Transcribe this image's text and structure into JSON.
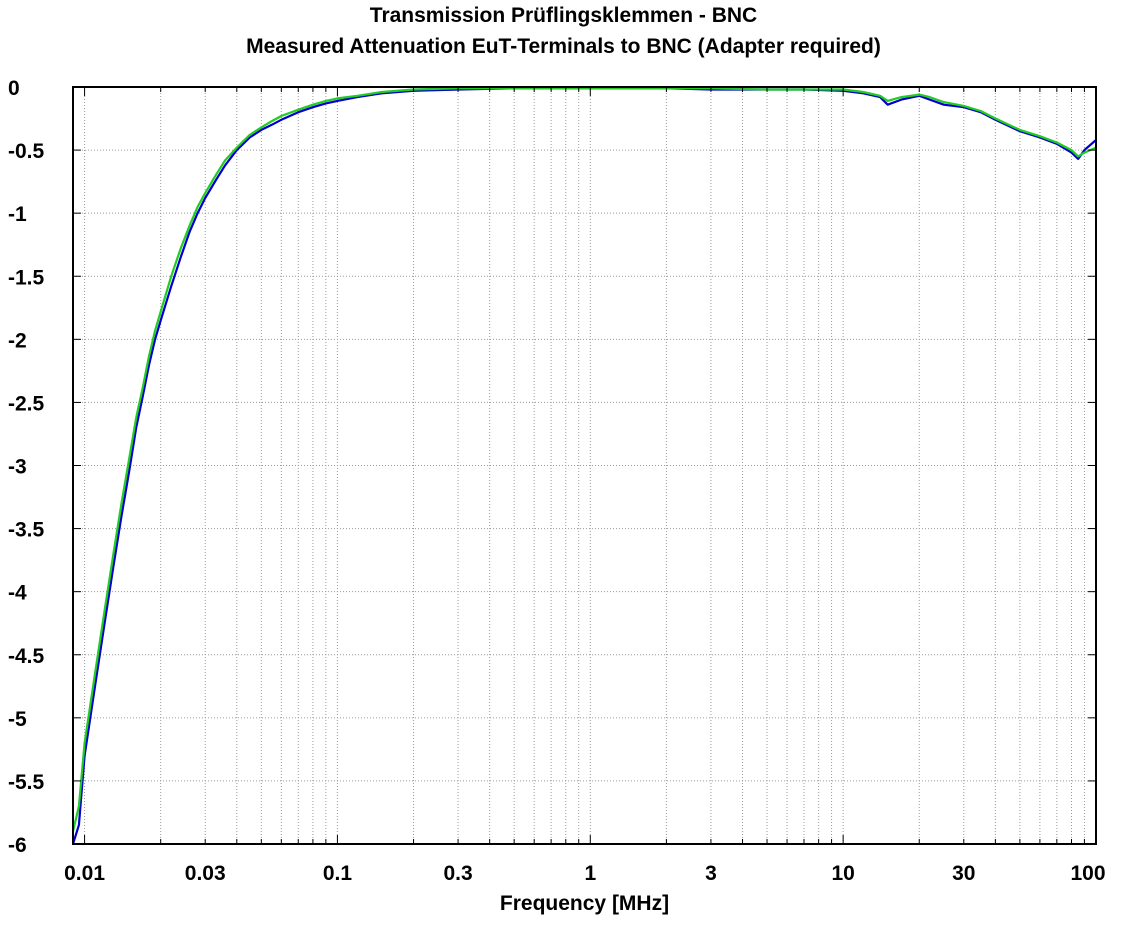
{
  "chart_data": {
    "type": "line",
    "title": "Transmission Prüflingsklemmen - BNC",
    "subtitle": "Measured Attenuation EuT-Terminals to BNC (Adapter required)",
    "xlabel": "Frequency [MHz]",
    "ylabel": "",
    "x_scale": "log",
    "xlim": [
      0.009,
      100
    ],
    "ylim": [
      -6,
      0
    ],
    "grid": true,
    "legend": "none",
    "x_ticks": [
      {
        "value": 0.01,
        "label": "0.01"
      },
      {
        "value": 0.03,
        "label": "0.03"
      },
      {
        "value": 0.1,
        "label": "0.1"
      },
      {
        "value": 0.3,
        "label": "0.3"
      },
      {
        "value": 1,
        "label": "1"
      },
      {
        "value": 3,
        "label": "3"
      },
      {
        "value": 10,
        "label": "10"
      },
      {
        "value": 30,
        "label": "30"
      },
      {
        "value": 100,
        "label": "100"
      }
    ],
    "y_ticks": [
      {
        "value": 0,
        "label": "0"
      },
      {
        "value": -0.5,
        "label": "-0.5"
      },
      {
        "value": -1,
        "label": "-1"
      },
      {
        "value": -1.5,
        "label": "-1.5"
      },
      {
        "value": -2,
        "label": "-2"
      },
      {
        "value": -2.5,
        "label": "-2.5"
      },
      {
        "value": -3,
        "label": "-3"
      },
      {
        "value": -3.5,
        "label": "-3.5"
      },
      {
        "value": -4,
        "label": "-4"
      },
      {
        "value": -4.5,
        "label": "-4.5"
      },
      {
        "value": -5,
        "label": "-5"
      },
      {
        "value": -5.5,
        "label": "-5.5"
      },
      {
        "value": -6,
        "label": "-6"
      }
    ],
    "series": [
      {
        "color": "#0000cc",
        "x": [
          0.009,
          0.0095,
          0.01,
          0.011,
          0.012,
          0.013,
          0.014,
          0.015,
          0.016,
          0.017,
          0.018,
          0.019,
          0.02,
          0.022,
          0.024,
          0.026,
          0.028,
          0.03,
          0.033,
          0.036,
          0.04,
          0.045,
          0.05,
          0.055,
          0.06,
          0.07,
          0.08,
          0.09,
          0.1,
          0.12,
          0.15,
          0.2,
          0.3,
          0.5,
          1,
          2,
          3,
          5,
          7,
          10,
          12,
          14,
          15,
          17,
          20,
          22,
          25,
          30,
          35,
          40,
          50,
          60,
          70,
          80,
          85,
          90,
          100
        ],
        "y": [
          -6.0,
          -5.85,
          -5.3,
          -4.75,
          -4.25,
          -3.8,
          -3.4,
          -3.05,
          -2.7,
          -2.45,
          -2.2,
          -2.0,
          -1.85,
          -1.58,
          -1.35,
          -1.15,
          -1.0,
          -0.88,
          -0.74,
          -0.62,
          -0.5,
          -0.4,
          -0.34,
          -0.3,
          -0.26,
          -0.2,
          -0.16,
          -0.13,
          -0.11,
          -0.08,
          -0.05,
          -0.03,
          -0.02,
          -0.01,
          -0.01,
          -0.01,
          -0.02,
          -0.02,
          -0.02,
          -0.03,
          -0.05,
          -0.08,
          -0.14,
          -0.1,
          -0.07,
          -0.1,
          -0.14,
          -0.16,
          -0.2,
          -0.26,
          -0.35,
          -0.4,
          -0.45,
          -0.52,
          -0.57,
          -0.5,
          -0.42
        ]
      },
      {
        "color": "#22cc22",
        "x": [
          0.009,
          0.0095,
          0.01,
          0.011,
          0.012,
          0.013,
          0.014,
          0.015,
          0.016,
          0.017,
          0.018,
          0.019,
          0.02,
          0.022,
          0.024,
          0.026,
          0.028,
          0.03,
          0.033,
          0.036,
          0.04,
          0.045,
          0.05,
          0.055,
          0.06,
          0.07,
          0.08,
          0.09,
          0.1,
          0.12,
          0.15,
          0.2,
          0.3,
          0.5,
          1,
          2,
          3,
          5,
          7,
          10,
          12,
          14,
          15,
          17,
          20,
          22,
          25,
          30,
          35,
          40,
          50,
          60,
          70,
          80,
          85,
          90,
          100
        ],
        "y": [
          -5.9,
          -5.7,
          -5.2,
          -4.65,
          -4.15,
          -3.7,
          -3.3,
          -2.95,
          -2.62,
          -2.38,
          -2.13,
          -1.93,
          -1.78,
          -1.5,
          -1.28,
          -1.1,
          -0.95,
          -0.84,
          -0.7,
          -0.58,
          -0.48,
          -0.38,
          -0.32,
          -0.27,
          -0.23,
          -0.18,
          -0.14,
          -0.11,
          -0.09,
          -0.07,
          -0.04,
          -0.02,
          -0.01,
          -0.01,
          -0.01,
          -0.01,
          -0.01,
          -0.02,
          -0.02,
          -0.02,
          -0.04,
          -0.07,
          -0.11,
          -0.08,
          -0.06,
          -0.08,
          -0.12,
          -0.15,
          -0.19,
          -0.25,
          -0.34,
          -0.39,
          -0.44,
          -0.5,
          -0.55,
          -0.52,
          -0.48
        ]
      }
    ]
  }
}
